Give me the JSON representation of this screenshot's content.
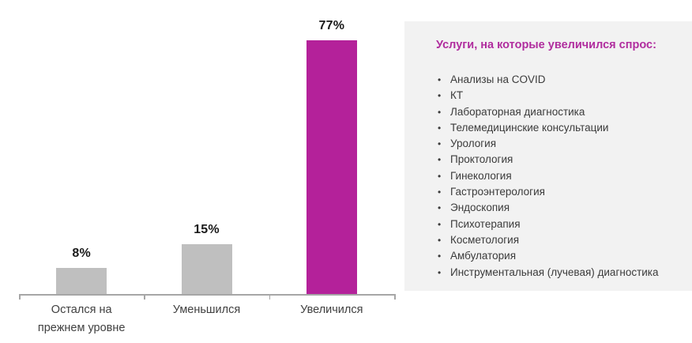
{
  "chart_data": {
    "type": "bar",
    "title": "",
    "xlabel": "",
    "ylabel": "",
    "categories": [
      "Остался на прежнем уровне",
      "Уменьшился",
      "Увеличился"
    ],
    "categories_wrapped": [
      [
        "Остался на",
        "прежнем уровне"
      ],
      [
        "Уменьшился"
      ],
      [
        "Увеличился"
      ]
    ],
    "values": [
      8,
      15,
      77
    ],
    "value_labels": [
      "8%",
      "15%",
      "77%"
    ],
    "unit": "%",
    "ylim": [
      0,
      80
    ],
    "grid": false,
    "legend": "none",
    "bar_colors": [
      "#bfbfbf",
      "#bfbfbf",
      "#b4219a"
    ],
    "axis_color": "#a6a6a6"
  },
  "panel": {
    "background": "#f2f2f2",
    "title": "Услуги, на которые увеличился спрос:",
    "title_color": "#b02d9e",
    "bullet_glyph": "•",
    "items": [
      "Анализы на COVID",
      "КТ",
      "Лабораторная диагностика",
      "Телемедицинские консультации",
      "Урология",
      "Проктология",
      "Гинекология",
      "Гастроэнтерология",
      "Эндоскопия",
      "Психотерапия",
      "Косметология",
      "Амбулатория",
      "Инструментальная (лучевая) диагностика"
    ]
  }
}
